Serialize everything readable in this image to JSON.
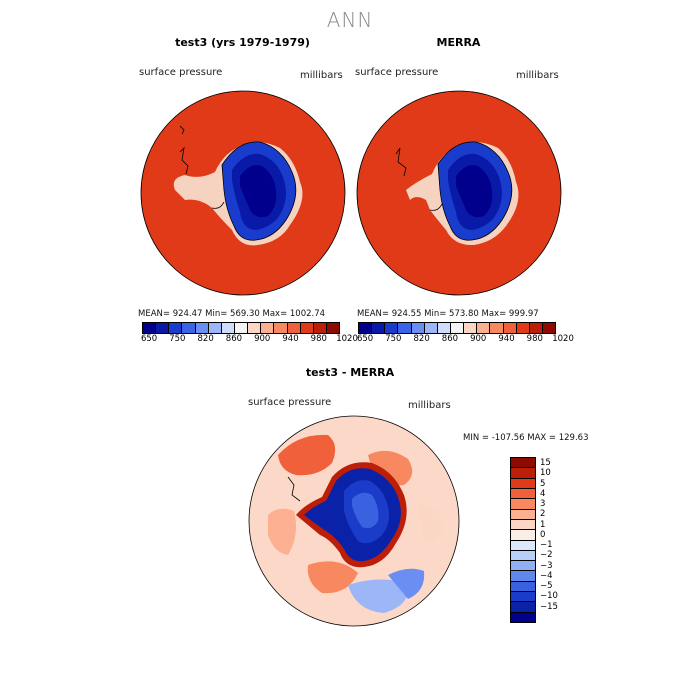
{
  "page": {
    "title": "ANN"
  },
  "panels": [
    {
      "title": "test3 (yrs 1979-1979)",
      "variable": "surface pressure",
      "units": "millibars",
      "stats": "MEAN= 924.47   Min= 569.30   Max= 1002.74"
    },
    {
      "title": "MERRA",
      "variable": "surface pressure",
      "units": "millibars",
      "stats": "MEAN= 924.55   Min= 573.80   Max= 999.97"
    }
  ],
  "colorbar_top": {
    "colors": [
      "#00008c",
      "#0a1aa8",
      "#1a3ccc",
      "#3a64e6",
      "#6a8ef2",
      "#9cb6f8",
      "#cfdcfb",
      "#f4f4f4",
      "#fcd6c4",
      "#fbb092",
      "#f88860",
      "#f0603a",
      "#e03a18",
      "#bc1e08",
      "#8c0a00"
    ],
    "tick_labels": [
      "650",
      "750",
      "820",
      "860",
      "900",
      "940",
      "980",
      "1020"
    ]
  },
  "diff": {
    "title": "test3 - MERRA",
    "variable": "surface pressure",
    "units": "millibars",
    "stats": "MIN = -107.56  MAX = 129.63",
    "colorbar": {
      "colors": [
        "#8c0a00",
        "#bc1e08",
        "#e03a18",
        "#f0603a",
        "#f88860",
        "#fbb092",
        "#fcd6c4",
        "#fbeee6",
        "#dce8fb",
        "#b8cff8",
        "#8fb0f4",
        "#6088ec",
        "#3a62e0",
        "#1a3cc8",
        "#0a22a8",
        "#00008c"
      ],
      "tick_labels": [
        "15",
        "10",
        "5",
        "4",
        "3",
        "2",
        "1",
        "0",
        "−1",
        "−2",
        "−3",
        "−4",
        "−5",
        "−10",
        "−15"
      ]
    }
  },
  "colors": {
    "ocean_high": "#e03a18",
    "ice_low": "#00008c",
    "ice_mid": "#1a3ccc",
    "diff_bg": "#fbd8c8"
  }
}
